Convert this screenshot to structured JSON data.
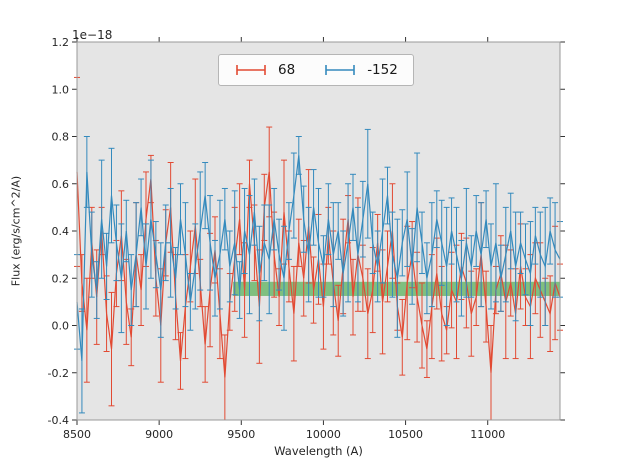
{
  "figure": {
    "offset_text": "1e−18"
  },
  "chart_data": {
    "type": "line",
    "title": "",
    "xlabel": "Wavelength (A)",
    "ylabel": "Flux (erg/s/cm^2/A)",
    "y_offset_factor": "1e-18",
    "xlim": [
      8500,
      11440
    ],
    "ylim": [
      -0.4,
      1.2
    ],
    "xticks": [
      8500,
      9000,
      9500,
      10000,
      10500,
      11000
    ],
    "yticks": [
      -0.4,
      -0.2,
      0.0,
      0.2,
      0.4,
      0.6,
      0.8,
      1.0,
      1.2
    ],
    "grid": false,
    "plot_bg": "#e5e5e5",
    "frame_color": "#999999",
    "tick_color": "#333333",
    "tick_label_color": "#262626",
    "legend_position": "upper center",
    "band": {
      "x0": 9450,
      "x1": 11440,
      "y0": 0.125,
      "y1": 0.185,
      "color": "#2ca02c",
      "alpha": 0.55
    },
    "series": [
      {
        "name": "68",
        "color": "#E24A33",
        "x_start": 8500,
        "x_step": 30,
        "values": [
          0.65,
          0.18,
          -0.02,
          0.35,
          0.12,
          0.4,
          0.05,
          -0.1,
          0.22,
          0.38,
          0.1,
          -0.05,
          0.3,
          0.15,
          0.45,
          0.62,
          0.2,
          0.0,
          0.35,
          0.5,
          0.12,
          -0.15,
          0.08,
          0.25,
          0.42,
          0.18,
          -0.08,
          0.15,
          0.32,
          0.05,
          -0.22,
          0.1,
          0.28,
          0.45,
          0.15,
          0.6,
          0.35,
          0.08,
          0.5,
          0.65,
          0.3,
          0.12,
          0.48,
          0.25,
          0.05,
          0.35,
          0.2,
          0.42,
          0.15,
          0.28,
          0.08,
          0.38,
          0.18,
          0.02,
          0.25,
          0.45,
          0.12,
          0.3,
          0.2,
          0.05,
          0.15,
          0.35,
          0.1,
          0.25,
          0.4,
          0.08,
          -0.05,
          0.18,
          0.3,
          0.12,
          0.0,
          -0.1,
          0.08,
          0.22,
          0.05,
          -0.02,
          0.15,
          0.1,
          0.25,
          0.18,
          0.05,
          0.12,
          0.3,
          0.08,
          -0.2,
          0.15,
          0.22,
          0.1,
          0.18,
          0.05,
          0.25,
          0.12,
          0.08,
          0.2,
          0.15,
          0.1,
          0.05,
          0.18,
          0.12
        ],
        "yerr": [
          0.4,
          0.12,
          0.22,
          0.15,
          0.2,
          0.1,
          0.16,
          0.24,
          0.14,
          0.19,
          0.18,
          0.12,
          0.22,
          0.15,
          0.2,
          0.1,
          0.16,
          0.24,
          0.14,
          0.19,
          0.18,
          0.12,
          0.22,
          0.15,
          0.2,
          0.1,
          0.16,
          0.24,
          0.14,
          0.19,
          0.18,
          0.12,
          0.22,
          0.15,
          0.2,
          0.1,
          0.16,
          0.24,
          0.14,
          0.19,
          0.18,
          0.12,
          0.22,
          0.15,
          0.2,
          0.1,
          0.16,
          0.24,
          0.14,
          0.19,
          0.18,
          0.12,
          0.22,
          0.15,
          0.2,
          0.1,
          0.16,
          0.24,
          0.14,
          0.19,
          0.18,
          0.12,
          0.22,
          0.15,
          0.2,
          0.1,
          0.16,
          0.24,
          0.14,
          0.19,
          0.18,
          0.12,
          0.22,
          0.15,
          0.2,
          0.1,
          0.16,
          0.24,
          0.14,
          0.19,
          0.18,
          0.12,
          0.22,
          0.15,
          0.2,
          0.1,
          0.16,
          0.24,
          0.14,
          0.19,
          0.18,
          0.12,
          0.22,
          0.15,
          0.2,
          0.1,
          0.16,
          0.24,
          0.14
        ]
      },
      {
        "name": "-152",
        "color": "#348ABD",
        "x_start": 8500,
        "x_step": 30,
        "values": [
          0.1,
          -0.15,
          0.65,
          0.3,
          0.15,
          0.45,
          0.25,
          0.55,
          0.35,
          0.2,
          0.4,
          0.15,
          0.3,
          0.5,
          0.25,
          0.45,
          0.3,
          0.15,
          0.35,
          0.35,
          0.2,
          0.45,
          0.3,
          0.1,
          0.25,
          0.4,
          0.55,
          0.35,
          0.2,
          0.3,
          0.45,
          0.25,
          0.35,
          0.15,
          0.4,
          0.3,
          0.48,
          0.22,
          0.35,
          0.28,
          0.45,
          0.3,
          0.2,
          0.4,
          0.55,
          0.72,
          0.45,
          0.3,
          0.5,
          0.35,
          0.25,
          0.45,
          0.3,
          0.4,
          0.22,
          0.35,
          0.5,
          0.3,
          0.45,
          0.6,
          0.35,
          0.25,
          0.4,
          0.55,
          0.3,
          0.2,
          0.35,
          0.45,
          0.25,
          0.5,
          0.35,
          0.2,
          0.3,
          0.45,
          0.35,
          0.25,
          0.4,
          0.3,
          0.2,
          0.35,
          0.25,
          0.4,
          0.3,
          0.45,
          0.25,
          0.35,
          0.2,
          0.3,
          0.4,
          0.25,
          0.35,
          0.28,
          0.22,
          0.38,
          0.3,
          0.25,
          0.4,
          0.32,
          0.28
        ],
        "yerr": [
          0.2,
          0.22,
          0.15,
          0.18,
          0.12,
          0.25,
          0.14,
          0.2,
          0.16,
          0.23,
          0.13,
          0.15,
          0.22,
          0.12,
          0.18,
          0.25,
          0.14,
          0.2,
          0.16,
          0.23,
          0.13,
          0.15,
          0.22,
          0.12,
          0.18,
          0.25,
          0.14,
          0.2,
          0.16,
          0.23,
          0.13,
          0.15,
          0.22,
          0.12,
          0.18,
          0.25,
          0.14,
          0.2,
          0.16,
          0.23,
          0.13,
          0.15,
          0.22,
          0.12,
          0.18,
          0.08,
          0.14,
          0.2,
          0.16,
          0.23,
          0.13,
          0.15,
          0.22,
          0.12,
          0.18,
          0.25,
          0.14,
          0.2,
          0.16,
          0.23,
          0.13,
          0.15,
          0.22,
          0.12,
          0.18,
          0.25,
          0.14,
          0.2,
          0.16,
          0.23,
          0.13,
          0.15,
          0.22,
          0.12,
          0.18,
          0.25,
          0.14,
          0.2,
          0.16,
          0.23,
          0.13,
          0.15,
          0.22,
          0.12,
          0.18,
          0.25,
          0.14,
          0.2,
          0.16,
          0.23,
          0.13,
          0.15,
          0.22,
          0.12,
          0.18,
          0.25,
          0.14,
          0.2,
          0.16
        ]
      }
    ]
  }
}
